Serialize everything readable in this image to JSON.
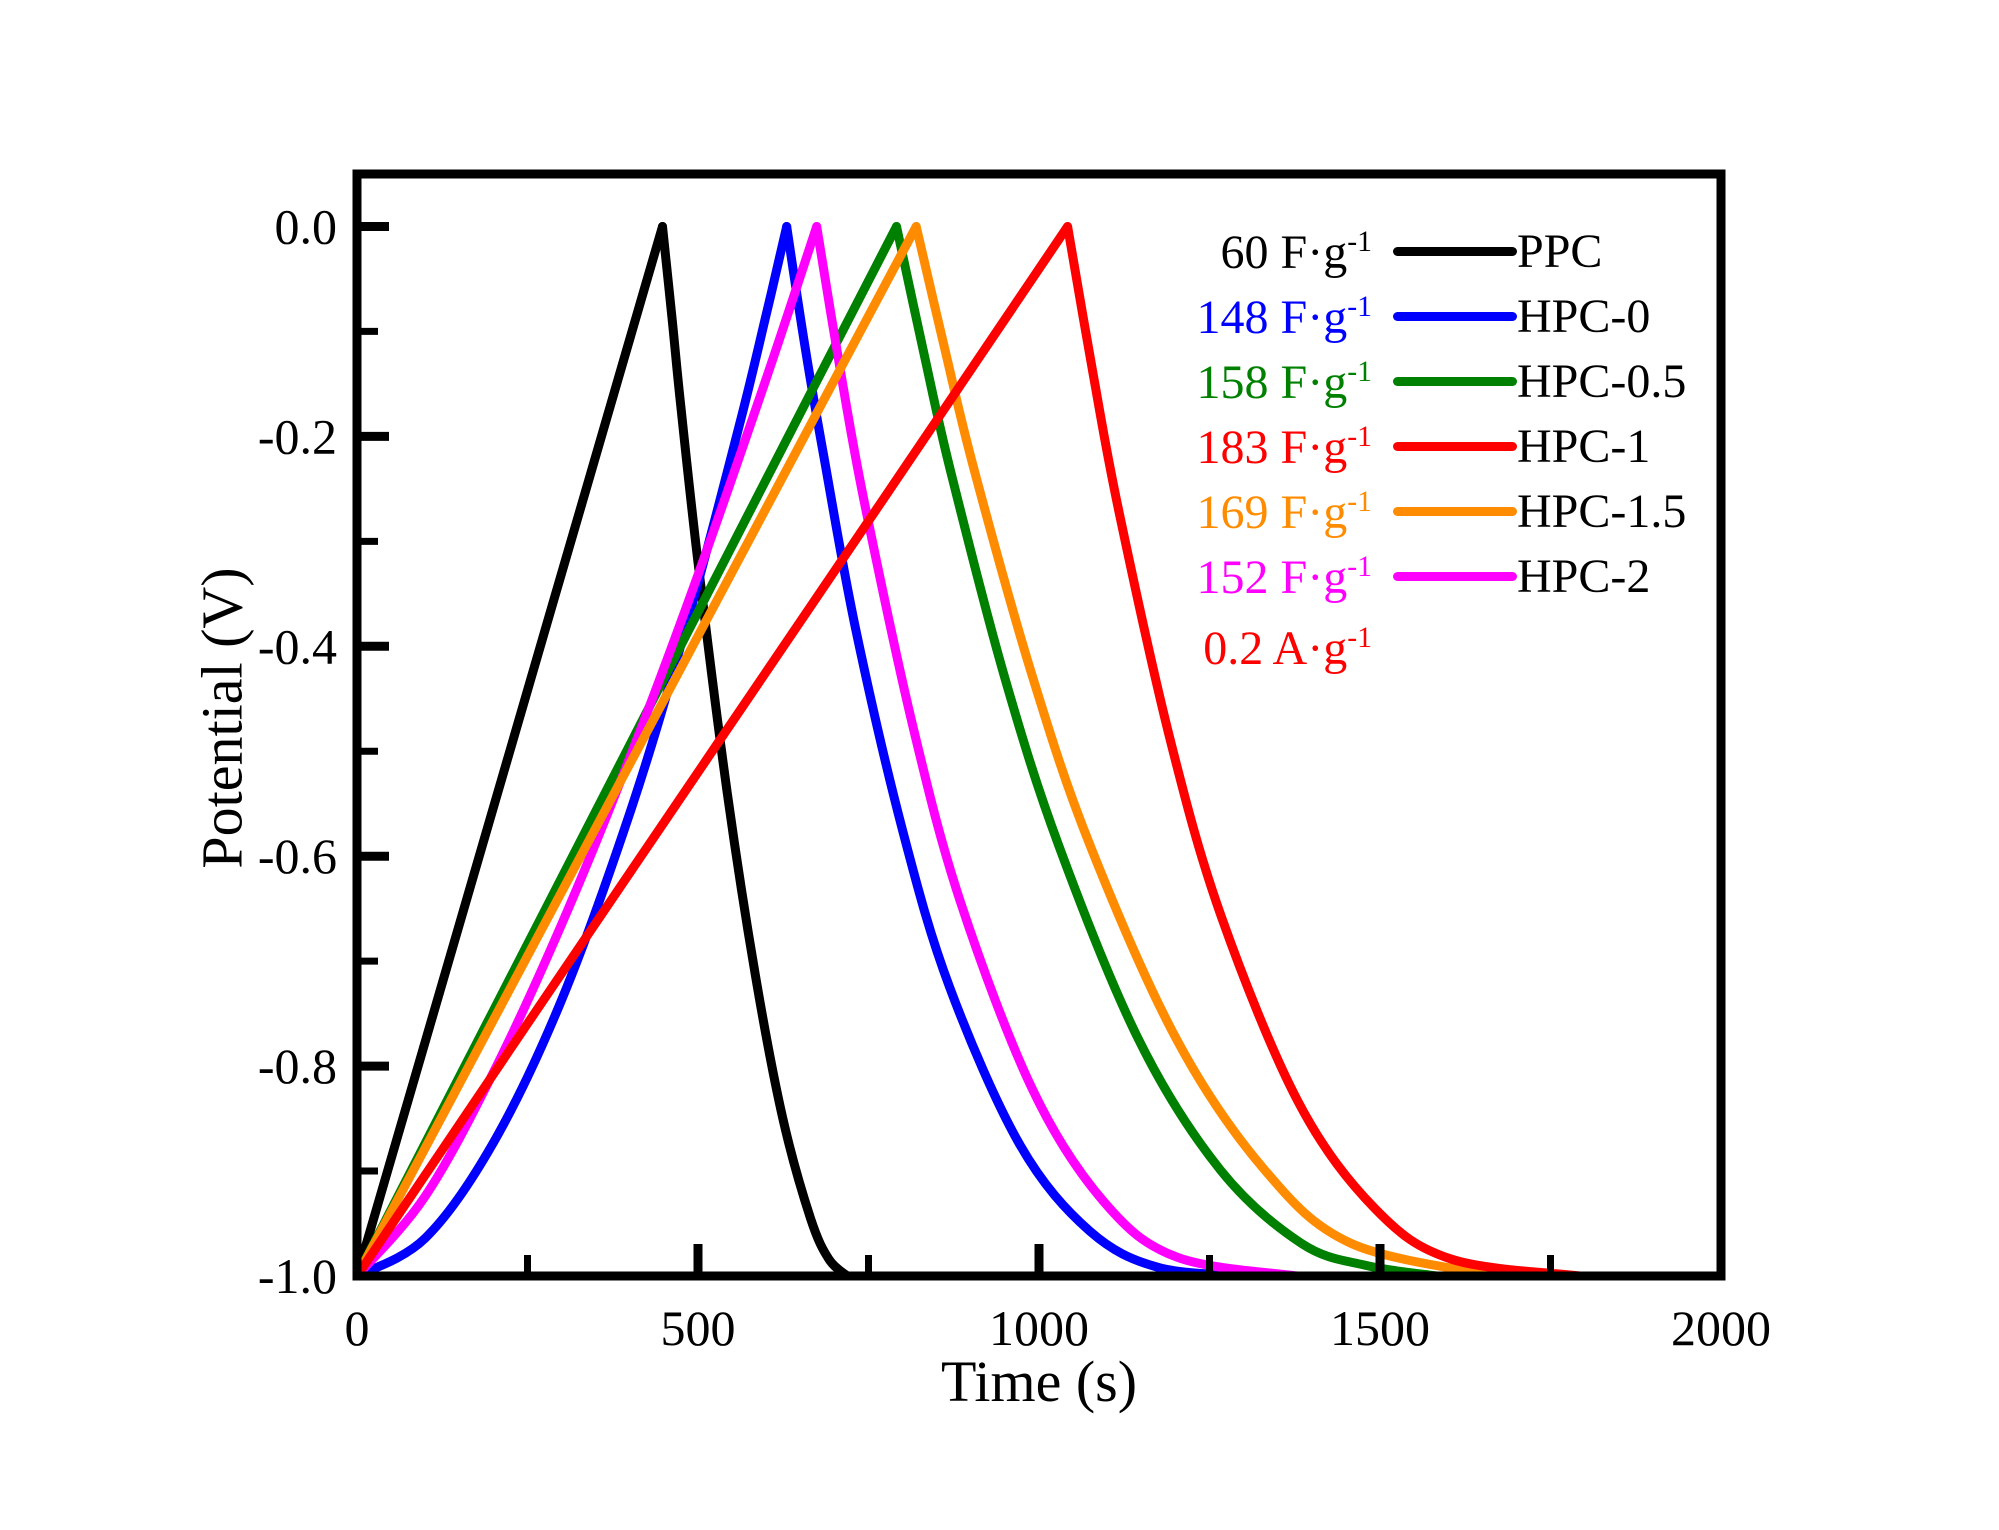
{
  "figure": {
    "background": "#FFFFFF"
  },
  "axes": {
    "xlabel": "Time (s)",
    "ylabel": "Potential (V)"
  },
  "legend": {
    "rows": [
      {
        "cap": "60 F·g",
        "sup": "-1",
        "label": "PPC",
        "color": "#000000"
      },
      {
        "cap": "148 F·g",
        "sup": "-1",
        "label": "HPC-0",
        "color": "#0000FF"
      },
      {
        "cap": "158 F·g",
        "sup": "-1",
        "label": "HPC-0.5",
        "color": "#008000"
      },
      {
        "cap": "183 F·g",
        "sup": "-1",
        "label": "HPC-1",
        "color": "#FF0000"
      },
      {
        "cap": "169 F·g",
        "sup": "-1",
        "label": "HPC-1.5",
        "color": "#FF8C00"
      },
      {
        "cap": "152 F·g",
        "sup": "-1",
        "label": "HPC-2",
        "color": "#FF00FF"
      }
    ],
    "note": {
      "text": "0.2 A·g",
      "sup": "-1",
      "color": "#FF0000"
    }
  },
  "chart_data": {
    "type": "line",
    "title": "",
    "xlabel": "Time (s)",
    "ylabel": "Potential (V)",
    "xlim": [
      0,
      2000
    ],
    "ylim": [
      -1.0,
      0.05
    ],
    "grid": false,
    "legend_position": "upper right",
    "current_density_label": "0.2 A·g⁻¹",
    "x_axis": {
      "major_ticks": [
        0,
        500,
        1000,
        1500,
        2000
      ],
      "tick_labels": [
        "0",
        "500",
        "1000",
        "1500",
        "2000"
      ],
      "minor_ticks": [
        250,
        750,
        1250,
        1750
      ]
    },
    "y_axis": {
      "major_ticks": [
        0.0,
        -0.2,
        -0.4,
        -0.6,
        -0.8,
        -1.0
      ],
      "tick_labels": [
        "0.0",
        "-0.2",
        "-0.4",
        "-0.6",
        "-0.8",
        "-1.0"
      ],
      "minor_ticks": [
        -0.1,
        -0.3,
        -0.5,
        -0.7,
        -0.9
      ]
    },
    "series": [
      {
        "name": "PPC",
        "color": "#000000",
        "capacitance_F_per_g": 60,
        "peak_time_s": 448,
        "end_time_s": 719,
        "charge": [
          [
            0,
            -1
          ],
          [
            112,
            -0.75
          ],
          [
            224,
            -0.5
          ],
          [
            336,
            -0.25
          ],
          [
            448,
            0
          ]
        ],
        "discharge": [
          [
            448,
            0
          ],
          [
            462,
            -0.088
          ],
          [
            475,
            -0.173
          ],
          [
            502,
            -0.331
          ],
          [
            543,
            -0.54
          ],
          [
            584,
            -0.713
          ],
          [
            624,
            -0.849
          ],
          [
            665,
            -0.945
          ],
          [
            692,
            -0.984
          ],
          [
            719,
            -1
          ]
        ]
      },
      {
        "name": "HPC-0",
        "color": "#0000FF",
        "capacitance_F_per_g": 148,
        "peak_time_s": 630,
        "end_time_s": 1313,
        "charge": [
          [
            0,
            -1
          ],
          [
            100,
            -0.964
          ],
          [
            200,
            -0.873
          ],
          [
            300,
            -0.737
          ],
          [
            400,
            -0.559
          ],
          [
            480,
            -0.387
          ],
          [
            560,
            -0.191
          ],
          [
            600,
            -0.084
          ],
          [
            630,
            0
          ]
        ],
        "discharge": [
          [
            630,
            0
          ],
          [
            657,
            -0.115
          ],
          [
            685,
            -0.221
          ],
          [
            732,
            -0.386
          ],
          [
            801,
            -0.578
          ],
          [
            869,
            -0.725
          ],
          [
            972,
            -0.875
          ],
          [
            1074,
            -0.957
          ],
          [
            1176,
            -0.992
          ],
          [
            1313,
            -1
          ]
        ]
      },
      {
        "name": "HPC-0.5",
        "color": "#008000",
        "capacitance_F_per_g": 158,
        "peak_time_s": 791,
        "end_time_s": 1583,
        "charge": [
          [
            0,
            -1
          ],
          [
            200,
            -0.747
          ],
          [
            400,
            -0.494
          ],
          [
            600,
            -0.241
          ],
          [
            791,
            0
          ]
        ],
        "discharge": [
          [
            791,
            0
          ],
          [
            831,
            -0.12
          ],
          [
            870,
            -0.232
          ],
          [
            949,
            -0.428
          ],
          [
            1029,
            -0.59
          ],
          [
            1147,
            -0.776
          ],
          [
            1266,
            -0.899
          ],
          [
            1385,
            -0.969
          ],
          [
            1480,
            -0.99
          ],
          [
            1583,
            -1
          ]
        ]
      },
      {
        "name": "HPC-2",
        "color": "#FF00FF",
        "capacitance_F_per_g": 152,
        "peak_time_s": 674,
        "end_time_s": 1378,
        "charge": [
          [
            0,
            -1
          ],
          [
            100,
            -0.924
          ],
          [
            200,
            -0.806
          ],
          [
            300,
            -0.665
          ],
          [
            400,
            -0.506
          ],
          [
            500,
            -0.332
          ],
          [
            600,
            -0.145
          ],
          [
            674,
            0
          ]
        ],
        "discharge": [
          [
            674,
            0
          ],
          [
            709,
            -0.138
          ],
          [
            744,
            -0.263
          ],
          [
            815,
            -0.476
          ],
          [
            885,
            -0.644
          ],
          [
            991,
            -0.823
          ],
          [
            1096,
            -0.93
          ],
          [
            1202,
            -0.982
          ],
          [
            1378,
            -1
          ]
        ]
      },
      {
        "name": "HPC-1.5",
        "color": "#FF8C00",
        "capacitance_F_per_g": 169,
        "peak_time_s": 820,
        "end_time_s": 1671,
        "charge": [
          [
            0,
            -1
          ],
          [
            205,
            -0.75
          ],
          [
            410,
            -0.5
          ],
          [
            615,
            -0.25
          ],
          [
            820,
            0
          ]
        ],
        "discharge": [
          [
            820,
            0
          ],
          [
            863,
            -0.12
          ],
          [
            905,
            -0.232
          ],
          [
            990,
            -0.428
          ],
          [
            1075,
            -0.59
          ],
          [
            1203,
            -0.776
          ],
          [
            1331,
            -0.899
          ],
          [
            1458,
            -0.969
          ],
          [
            1671,
            -1
          ]
        ]
      },
      {
        "name": "HPC-1",
        "color": "#FF0000",
        "capacitance_F_per_g": 183,
        "peak_time_s": 1042,
        "end_time_s": 1793,
        "charge": [
          [
            0,
            -1
          ],
          [
            260,
            -0.75
          ],
          [
            521,
            -0.5
          ],
          [
            782,
            -0.25
          ],
          [
            1042,
            0
          ]
        ],
        "discharge": [
          [
            1042,
            0
          ],
          [
            1080,
            -0.143
          ],
          [
            1117,
            -0.271
          ],
          [
            1192,
            -0.488
          ],
          [
            1267,
            -0.657
          ],
          [
            1380,
            -0.834
          ],
          [
            1493,
            -0.936
          ],
          [
            1605,
            -0.984
          ],
          [
            1793,
            -1
          ]
        ]
      }
    ]
  }
}
